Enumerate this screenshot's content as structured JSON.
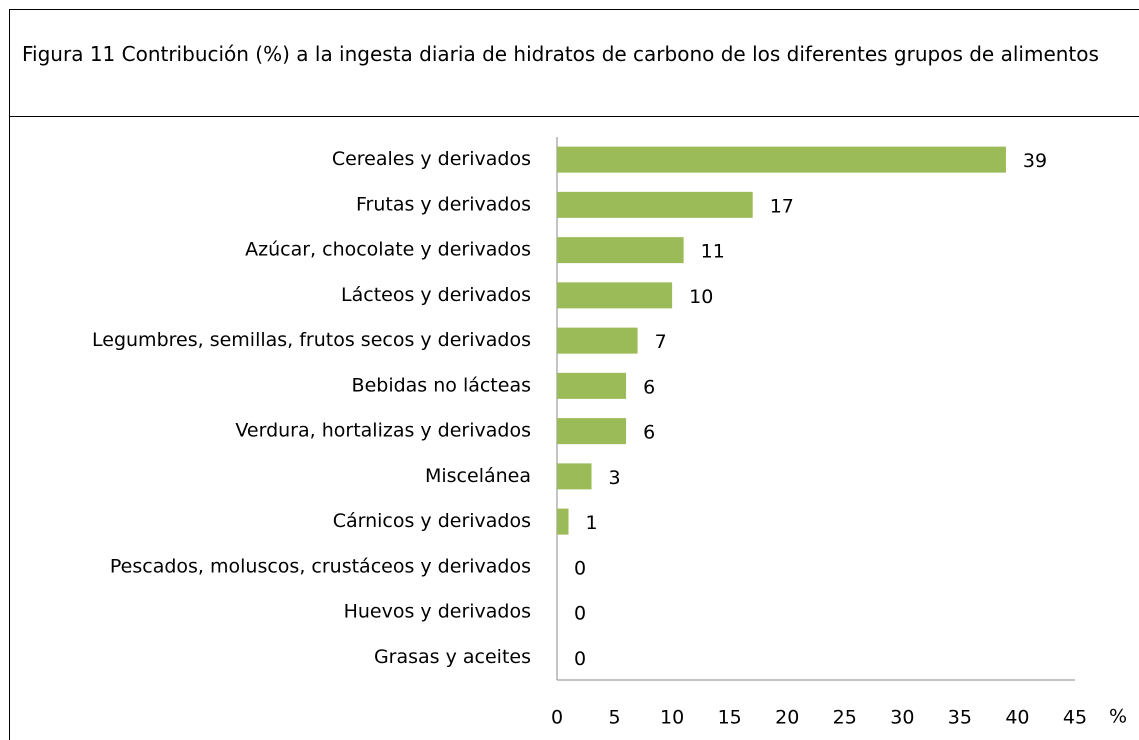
{
  "chart_data": {
    "type": "bar",
    "orientation": "horizontal",
    "title": "Figura 11 Contribución (%) a la ingesta diaria de hidratos de carbono de los diferentes grupos de alimentos",
    "x_label": "%",
    "categories": [
      "Cereales y derivados",
      "Frutas y derivados",
      "Azúcar, chocolate y derivados",
      "Lácteos y derivados",
      "Legumbres, semillas, frutos secos y derivados",
      "Bebidas no lácteas",
      "Verdura, hortalizas y derivados",
      "Miscelánea",
      "Cárnicos y derivados",
      "Pescados, moluscos, crustáceos y derivados",
      "Huevos y derivados",
      "Grasas y aceites"
    ],
    "values": [
      39,
      17,
      11,
      10,
      7,
      6,
      6,
      3,
      1,
      0,
      0,
      0
    ],
    "color": "#9bbb59",
    "xlim": [
      0,
      45
    ],
    "xticks": [
      0,
      5,
      10,
      15,
      20,
      25,
      30,
      35,
      40,
      45
    ],
    "grid": false
  }
}
